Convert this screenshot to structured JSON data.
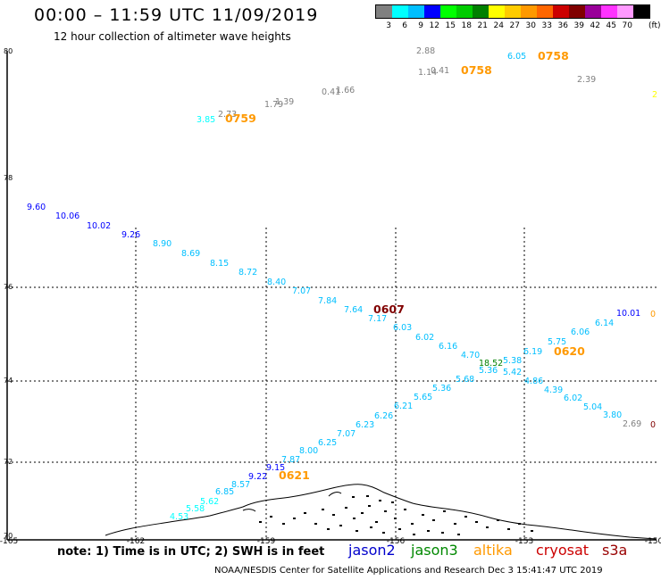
{
  "header": {
    "title": "00:00 – 11:59 UTC 11/09/2019",
    "subtitle": "12 hour collection of altimeter wave heights"
  },
  "legend": {
    "labels": [
      "3",
      "6",
      "9",
      "12",
      "15",
      "18",
      "21",
      "24",
      "27",
      "30",
      "33",
      "36",
      "39",
      "42",
      "45",
      "70",
      "(ft)"
    ],
    "colors": [
      "#808080",
      "#00ffff",
      "#00bfff",
      "#0000ff",
      "#00ff00",
      "#00cc00",
      "#008000",
      "#ffff00",
      "#ffcc00",
      "#ff9900",
      "#ff6600",
      "#cc0000",
      "#800000",
      "#990099",
      "#ff33ff",
      "#ff99ff",
      "#000000"
    ]
  },
  "axes": {
    "y_ticks": [
      "80",
      "78",
      "76",
      "74",
      "72",
      "70"
    ],
    "x_ticks": [
      "-165",
      "-162",
      "-159",
      "-156",
      "-153",
      "-150"
    ]
  },
  "points": [
    {
      "text": "2.88",
      "color": "#808080"
    },
    {
      "text": "1.14",
      "color": "#808080"
    },
    {
      "text": "0.41",
      "color": "#808080"
    },
    {
      "text": "0758",
      "color": "#ff9900"
    },
    {
      "text": "6.05",
      "color": "#00bfff"
    },
    {
      "text": "0758",
      "color": "#ff9900"
    },
    {
      "text": "2.39",
      "color": "#808080"
    },
    {
      "text": "0.41",
      "color": "#808080"
    },
    {
      "text": "1.66",
      "color": "#808080"
    },
    {
      "text": "1.79",
      "color": "#808080"
    },
    {
      "text": "1.39",
      "color": "#808080"
    },
    {
      "text": "2.73",
      "color": "#808080"
    },
    {
      "text": "3.85",
      "color": "#00ffff"
    },
    {
      "text": "0759",
      "color": "#ff9900"
    },
    {
      "text": "2",
      "color": "#ffff00"
    },
    {
      "text": "9.60",
      "color": "#0000ff"
    },
    {
      "text": "10.06",
      "color": "#0000ff"
    },
    {
      "text": "10.02",
      "color": "#0000ff"
    },
    {
      "text": "9.26",
      "color": "#0000ff"
    },
    {
      "text": "8.90",
      "color": "#00bfff"
    },
    {
      "text": "8.69",
      "color": "#00bfff"
    },
    {
      "text": "8.15",
      "color": "#00bfff"
    },
    {
      "text": "8.72",
      "color": "#00bfff"
    },
    {
      "text": "8.40",
      "color": "#00bfff"
    },
    {
      "text": "7.07",
      "color": "#00bfff"
    },
    {
      "text": "7.84",
      "color": "#00bfff"
    },
    {
      "text": "7.64",
      "color": "#00bfff"
    },
    {
      "text": "0607",
      "color": "#800000"
    },
    {
      "text": "7.17",
      "color": "#00bfff"
    },
    {
      "text": "6.03",
      "color": "#00bfff"
    },
    {
      "text": "6.02",
      "color": "#00bfff"
    },
    {
      "text": "6.16",
      "color": "#00bfff"
    },
    {
      "text": "4.70",
      "color": "#00bfff"
    },
    {
      "text": "18.52",
      "color": "#008000"
    },
    {
      "text": "5.38",
      "color": "#00bfff"
    },
    {
      "text": "5.36",
      "color": "#00bfff"
    },
    {
      "text": "5.42",
      "color": "#00bfff"
    },
    {
      "text": "4.86",
      "color": "#00bfff"
    },
    {
      "text": "4.39",
      "color": "#00bfff"
    },
    {
      "text": "6.02",
      "color": "#00bfff"
    },
    {
      "text": "5.04",
      "color": "#00bfff"
    },
    {
      "text": "3.80",
      "color": "#00bfff"
    },
    {
      "text": "2.69",
      "color": "#808080"
    },
    {
      "text": "0",
      "color": "#800000"
    },
    {
      "text": "10.01",
      "color": "#0000ff"
    },
    {
      "text": "0",
      "color": "#ff9900"
    },
    {
      "text": "6.14",
      "color": "#00bfff"
    },
    {
      "text": "6.06",
      "color": "#00bfff"
    },
    {
      "text": "5.75",
      "color": "#00bfff"
    },
    {
      "text": "0620",
      "color": "#ff9900"
    },
    {
      "text": "6.19",
      "color": "#00bfff"
    },
    {
      "text": "5.68",
      "color": "#00bfff"
    },
    {
      "text": "5.36",
      "color": "#00bfff"
    },
    {
      "text": "5.65",
      "color": "#00bfff"
    },
    {
      "text": "6.21",
      "color": "#00bfff"
    },
    {
      "text": "6.26",
      "color": "#00bfff"
    },
    {
      "text": "6.23",
      "color": "#00bfff"
    },
    {
      "text": "7.07",
      "color": "#00bfff"
    },
    {
      "text": "6.25",
      "color": "#00bfff"
    },
    {
      "text": "8.00",
      "color": "#00bfff"
    },
    {
      "text": "7.87",
      "color": "#00bfff"
    },
    {
      "text": "9.15",
      "color": "#0000ff"
    },
    {
      "text": "9.22",
      "color": "#0000ff"
    },
    {
      "text": "0621",
      "color": "#ff9900"
    },
    {
      "text": "8.57",
      "color": "#00bfff"
    },
    {
      "text": "6.85",
      "color": "#00bfff"
    },
    {
      "text": "5.62",
      "color": "#00ffff"
    },
    {
      "text": "5.58",
      "color": "#00ffff"
    },
    {
      "text": "4.53",
      "color": "#00ffff"
    }
  ],
  "note": "note: 1) Time is in UTC; 2) SWH is in feet",
  "satellites": [
    {
      "name": "jason2",
      "color": "#0000cc"
    },
    {
      "name": "jason3",
      "color": "#008800"
    },
    {
      "name": "altika",
      "color": "#ff9900"
    },
    {
      "name": "cryosat",
      "color": "#cc0000"
    },
    {
      "name": "s3a",
      "color": "#990000"
    }
  ],
  "footer": "NOAA/NESDIS Center for Satellite Applications and Research   Dec  3 15:41:47 UTC 2019"
}
